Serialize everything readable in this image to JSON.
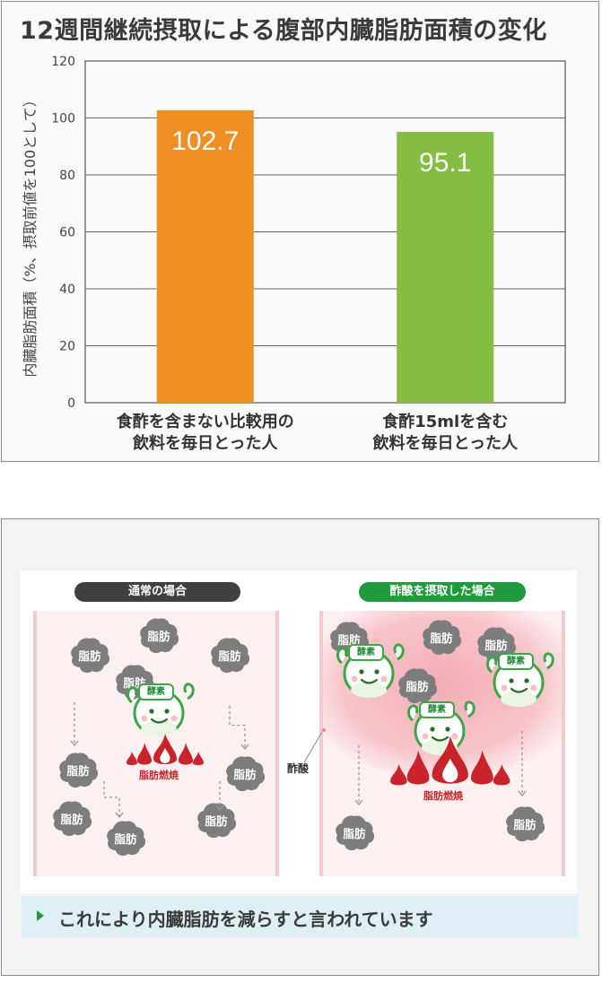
{
  "chart_data": {
    "type": "bar",
    "title": "12週間継続摂取による腹部内臓脂肪面積の変化",
    "ylabel": "内臓脂肪面積（%、摂取前値を100として）",
    "xlabel": "",
    "ylim": [
      0,
      120
    ],
    "yticks": [
      0,
      20,
      40,
      60,
      80,
      100,
      120
    ],
    "categories": [
      [
        "食酢を含まない比較用の",
        "飲料を毎日とった人"
      ],
      [
        "食酢15mlを含む",
        "飲料を毎日とった人"
      ]
    ],
    "values": [
      102.7,
      95.1
    ],
    "value_labels": [
      "102.7",
      "95.1"
    ],
    "colors": [
      "#ef8f24",
      "#84bd41"
    ],
    "grid": true
  },
  "illustration": {
    "normal": {
      "label": "通常の場合",
      "fat_label": "脂肪",
      "enzyme_label": "酵素",
      "burn_label": "脂肪燃焼"
    },
    "acid": {
      "label": "酢酸を摂取した場合",
      "fat_label": "脂肪",
      "enzyme_label": "酵素",
      "burn_label": "脂肪燃焼",
      "acid_label": "酢酸"
    },
    "colors": {
      "fat": "#7d7d7d",
      "flame": "#c9242b",
      "enzyme": "#3aa645",
      "pink": "#f3a9b1"
    }
  },
  "banner": {
    "text": "これにより内臓脂肪を減らすと言われています"
  }
}
